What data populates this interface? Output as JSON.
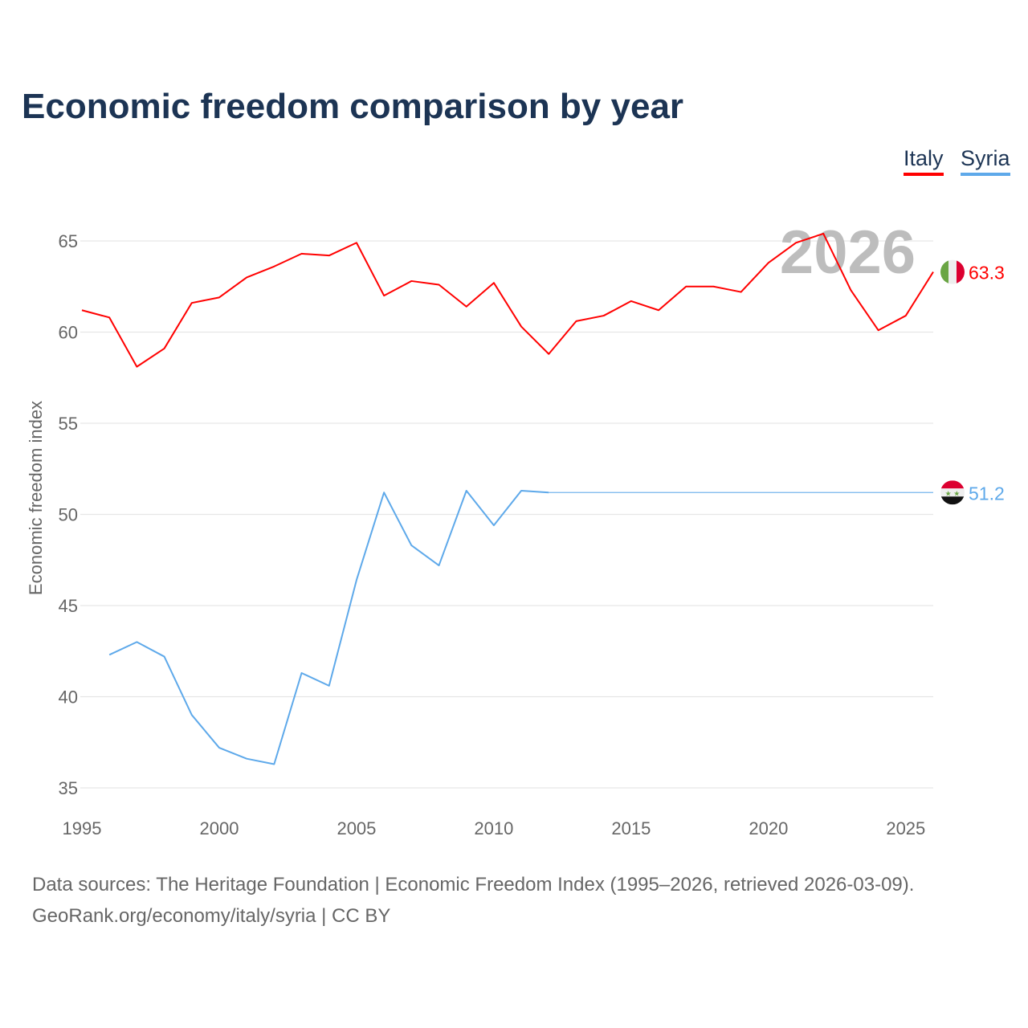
{
  "chart_data": {
    "type": "line",
    "title": "Economic freedom comparison by year",
    "xlabel": "",
    "ylabel": "Economic freedom index",
    "xlim": [
      1995,
      2026
    ],
    "ylim": [
      35,
      65
    ],
    "yticks": [
      35,
      40,
      45,
      50,
      55,
      60,
      65
    ],
    "xticks": [
      1995,
      2000,
      2005,
      2010,
      2015,
      2020,
      2025
    ],
    "grid": true,
    "legend_placement": "top-right",
    "year_watermark": "2026",
    "series": [
      {
        "name": "Italy",
        "color": "#ff0000",
        "end_label": "63.3",
        "x": [
          1995,
          1996,
          1997,
          1998,
          1999,
          2000,
          2001,
          2002,
          2003,
          2004,
          2005,
          2006,
          2007,
          2008,
          2009,
          2010,
          2011,
          2012,
          2013,
          2014,
          2015,
          2016,
          2017,
          2018,
          2019,
          2020,
          2021,
          2022,
          2023,
          2024,
          2025,
          2026
        ],
        "values": [
          61.2,
          60.8,
          58.1,
          59.1,
          61.6,
          61.9,
          63.0,
          63.6,
          64.3,
          64.2,
          64.9,
          62.0,
          62.8,
          62.6,
          61.4,
          62.7,
          60.3,
          58.8,
          60.6,
          60.9,
          61.7,
          61.2,
          62.5,
          62.5,
          62.2,
          63.8,
          64.9,
          65.4,
          62.3,
          60.1,
          60.9,
          63.3
        ]
      },
      {
        "name": "Syria",
        "color": "#5ea9ea",
        "end_label": "51.2",
        "x": [
          1996,
          1997,
          1998,
          1999,
          2000,
          2001,
          2002,
          2003,
          2004,
          2005,
          2006,
          2007,
          2008,
          2009,
          2010,
          2011,
          2012
        ],
        "values": [
          42.3,
          43.0,
          42.2,
          39.0,
          37.2,
          36.6,
          36.3,
          41.3,
          40.6,
          46.4,
          51.2,
          48.3,
          47.2,
          51.3,
          49.4,
          51.3,
          51.2
        ],
        "carried_forward_to": 2026
      }
    ]
  },
  "footer": {
    "line1": "Data sources: The Heritage Foundation | Economic Freedom Index (1995–2026, retrieved 2026-03-09).",
    "line2": "GeoRank.org/economy/italy/syria | CC BY"
  }
}
